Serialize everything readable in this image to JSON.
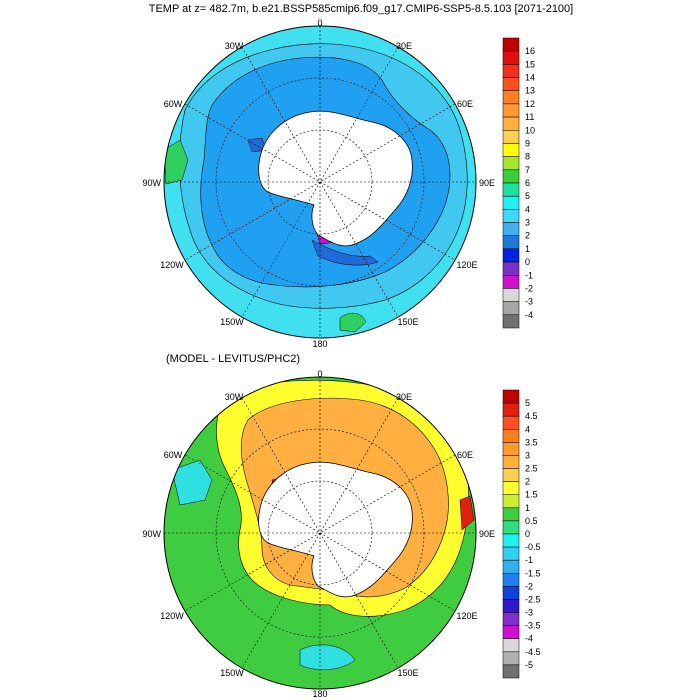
{
  "panels": [
    {
      "title": "TEMP at z= 482.7m, b.e21.BSSP585cmip6.f09_g17.CMIP6-SSP5-8.5.103 [2071-2100]",
      "lon_labels": {
        "top": "0",
        "top_right": "30E",
        "top_left": "30W",
        "upper_right": "60E",
        "upper_left": "60W",
        "right": "90E",
        "left": "90W",
        "lower_right": "120E",
        "lower_left": "120W",
        "bottom_right": "150E",
        "bottom_left": "150W",
        "bottom": "180"
      },
      "colorbar": {
        "labels": [
          "16",
          "15",
          "14",
          "13",
          "12",
          "11",
          "10",
          "9",
          "8",
          "7",
          "6",
          "5",
          "4",
          "3",
          "2",
          "1",
          "0",
          "-1",
          "-2",
          "-3",
          "-4"
        ],
        "colors": [
          "#c00000",
          "#e01010",
          "#f03020",
          "#ff5020",
          "#ff7f20",
          "#ff9a30",
          "#ffb040",
          "#ffd050",
          "#ffff00",
          "#a6e632",
          "#3ccc3c",
          "#20e0a0",
          "#20f0f0",
          "#40d8f8",
          "#40b0f0",
          "#1e7ad8",
          "#0022e0",
          "#7a30c8",
          "#d010d0",
          "#d8d8d8",
          "#a6a6a6",
          "#707070"
        ]
      },
      "regions": [
        {
          "name": "ocean-cyan-outer",
          "color": "#40e0f0"
        },
        {
          "name": "ocean-mid",
          "color": "#40c0f0"
        },
        {
          "name": "ocean-blue-inner",
          "color": "#20a0f0"
        },
        {
          "name": "shelf-dark-blue",
          "color": "#1e6ad8"
        },
        {
          "name": "ross-magenta",
          "color": "#d010d0"
        },
        {
          "name": "warm-green-patch",
          "color": "#30d060"
        }
      ]
    },
    {
      "title": "(MODEL - LEVITUS/PHC2)",
      "lon_labels": {
        "top": "0",
        "top_right": "30E",
        "top_left": "30W",
        "upper_right": "60E",
        "upper_left": "60W",
        "right": "90E",
        "left": "90W",
        "lower_right": "120E",
        "lower_left": "120W",
        "bottom_right": "150E",
        "bottom_left": "150W",
        "bottom": "180"
      },
      "colorbar": {
        "labels": [
          "5",
          "4.5",
          "4",
          "3.5",
          "3",
          "2.5",
          "2",
          "1.5",
          "1",
          "0.5",
          "0",
          "-0.5",
          "-1",
          "-1.5",
          "-2",
          "-2.5",
          "-3",
          "-3.5",
          "-4",
          "-4.5",
          "-5"
        ],
        "colors": [
          "#c00000",
          "#e02010",
          "#ff5020",
          "#ff7f20",
          "#ff9a30",
          "#ffb040",
          "#ffd050",
          "#ffff30",
          "#c8f030",
          "#40cc40",
          "#30e080",
          "#20f0f0",
          "#30d0f0",
          "#30b0f0",
          "#2080f0",
          "#1040e0",
          "#3018d0",
          "#8030c8",
          "#d010d0",
          "#d8d8d8",
          "#b0b0b0",
          "#707070"
        ]
      },
      "regions": [
        {
          "name": "anomaly-green",
          "color": "#40cc40"
        },
        {
          "name": "anomaly-yellow",
          "color": "#ffff30"
        },
        {
          "name": "anomaly-orange",
          "color": "#ffb040"
        },
        {
          "name": "anomaly-cyan",
          "color": "#30e0e0"
        },
        {
          "name": "anomaly-red",
          "color": "#e02010"
        }
      ]
    }
  ]
}
